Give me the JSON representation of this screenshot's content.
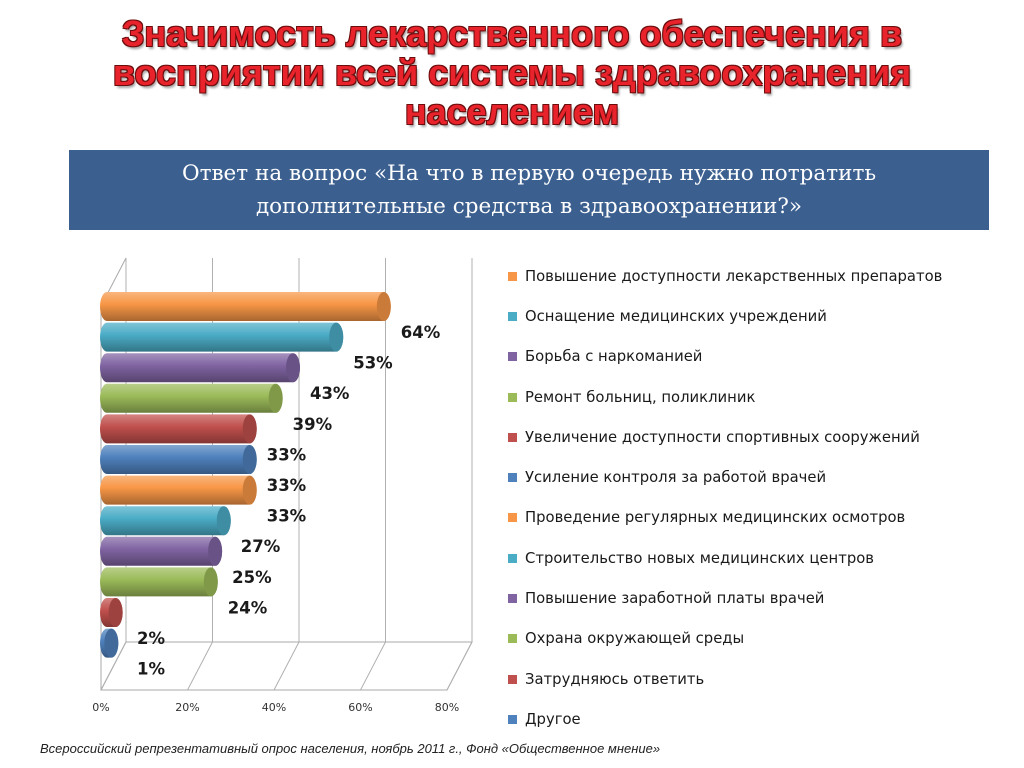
{
  "title": "Значимость лекарственного обеспечения в восприятии всей системы здравоохранения населением",
  "question": "Ответ на вопрос «На что в первую очередь нужно потратить дополнительные средства в здравоохранении?»",
  "source_note": "Всероссийский репрезентативный опрос населения, ноябрь 2011 г., Фонд «Общественное мнение»",
  "colors": {
    "title_red": "#e8232b",
    "banner_blue": "#3b5f8f",
    "orange": "#f79646",
    "teal": "#4bacc6",
    "purple": "#8064a2",
    "green": "#9bbb59",
    "red": "#c0504d",
    "blue": "#4f81bd"
  },
  "chart_data": {
    "type": "bar",
    "orientation": "horizontal",
    "style": "3d-cylinder",
    "categories": [
      "Повышение доступности лекарственных препаратов",
      "Оснащение медицинских учреждений",
      "Борьба с наркоманией",
      "Ремонт больниц, поликлиник",
      "Увеличение доступности спортивных сооружений",
      "Усиление контроля за работой врачей",
      "Проведение регулярных медицинских осмотров",
      "Строительство новых медицинских центров",
      "Повышение заработной платы врачей",
      "Охрана окружающей среды",
      "Затрудняюсь ответить",
      "Другое"
    ],
    "values": [
      64,
      53,
      43,
      39,
      33,
      33,
      33,
      27,
      25,
      24,
      2,
      1
    ],
    "value_labels": [
      "64%",
      "53%",
      "43%",
      "39%",
      "33%",
      "33%",
      "33%",
      "27%",
      "25%",
      "24%",
      "2%",
      "1%"
    ],
    "colors": [
      "#f79646",
      "#4bacc6",
      "#8064a2",
      "#9bbb59",
      "#c0504d",
      "#4f81bd",
      "#f79646",
      "#4bacc6",
      "#8064a2",
      "#9bbb59",
      "#c0504d",
      "#4f81bd"
    ],
    "x_ticks": [
      "0%",
      "20%",
      "40%",
      "60%",
      "80%"
    ],
    "xlim": [
      0,
      80
    ],
    "grid": true,
    "legend": "right"
  }
}
